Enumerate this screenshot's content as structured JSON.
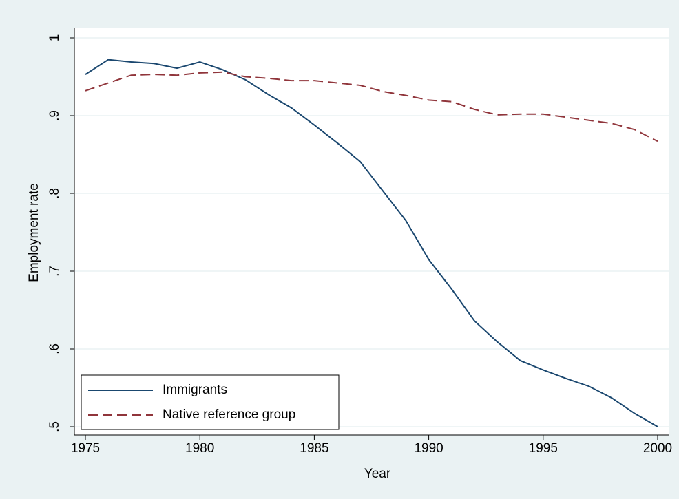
{
  "chart_data": {
    "type": "line",
    "x_label": "Year",
    "y_label": "Employment rate",
    "x": [
      1975,
      1976,
      1977,
      1978,
      1979,
      1980,
      1981,
      1982,
      1983,
      1984,
      1985,
      1986,
      1987,
      1988,
      1989,
      1990,
      1991,
      1992,
      1993,
      1994,
      1995,
      1996,
      1997,
      1998,
      1999,
      2000
    ],
    "series": [
      {
        "name": "Immigrants",
        "color": "#1a476f",
        "dash": "solid",
        "values": [
          0.953,
          0.972,
          0.969,
          0.967,
          0.961,
          0.969,
          0.959,
          0.946,
          0.927,
          0.91,
          0.888,
          0.865,
          0.841,
          0.803,
          0.765,
          0.715,
          0.677,
          0.636,
          0.609,
          0.585,
          0.573,
          0.562,
          0.552,
          0.537,
          0.517,
          0.5
        ]
      },
      {
        "name": "Native reference group",
        "color": "#90353b",
        "dash": "dashed",
        "values": [
          0.932,
          0.942,
          0.952,
          0.953,
          0.952,
          0.955,
          0.956,
          0.95,
          0.948,
          0.945,
          0.945,
          0.942,
          0.939,
          0.931,
          0.926,
          0.92,
          0.918,
          0.908,
          0.901,
          0.902,
          0.902,
          0.898,
          0.894,
          0.89,
          0.882,
          0.867
        ]
      }
    ],
    "xlim": [
      1975,
      2000
    ],
    "xticks": [
      1975,
      1980,
      1985,
      1990,
      1995,
      2000
    ],
    "ylim": [
      0.5,
      1
    ],
    "yticks": [
      {
        "value": 0.5,
        "label": ".5"
      },
      {
        "value": 0.6,
        "label": ".6"
      },
      {
        "value": 0.7,
        "label": ".7"
      },
      {
        "value": 0.8,
        "label": ".8"
      },
      {
        "value": 0.9,
        "label": ".9"
      },
      1
    ],
    "grid": true,
    "legend": "lower left"
  }
}
